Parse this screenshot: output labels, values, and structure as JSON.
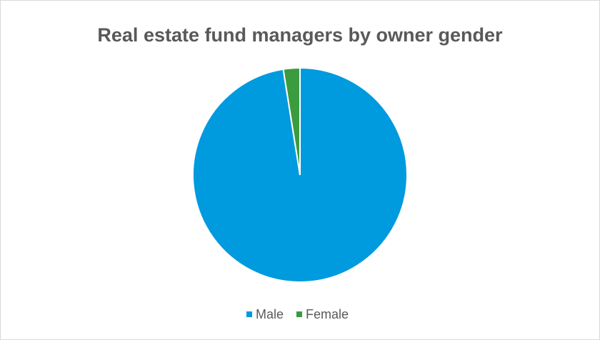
{
  "chart_data": {
    "type": "pie",
    "title": "Real estate fund managers by owner gender",
    "categories": [
      "Male",
      "Female"
    ],
    "values": [
      97.5,
      2.5
    ],
    "colors": [
      "#009ade",
      "#3a9b3f"
    ],
    "legend": "bottom"
  }
}
